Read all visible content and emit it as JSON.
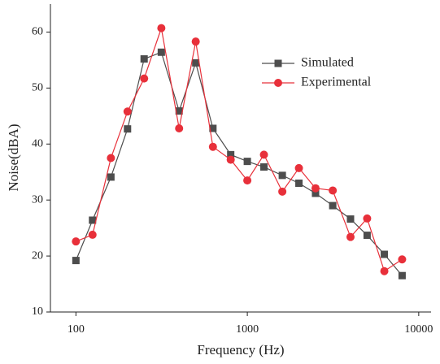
{
  "chart_data": {
    "type": "line",
    "x_label": "Frequency (Hz)",
    "y_label": "Noise(dBA)",
    "xscale": "log",
    "x": [
      100,
      125,
      160,
      200,
      250,
      315,
      400,
      500,
      630,
      800,
      1000,
      1250,
      1600,
      2000,
      2500,
      3150,
      4000,
      5000,
      6300,
      8000
    ],
    "series": [
      {
        "name": "Simulated",
        "color": "#4d4d4d",
        "marker": "square",
        "values": [
          19.2,
          26.4,
          34.1,
          42.7,
          55.2,
          56.4,
          45.9,
          54.5,
          42.8,
          38.1,
          36.9,
          35.9,
          34.4,
          33.0,
          31.2,
          29.0,
          26.6,
          23.7,
          20.3,
          16.5
        ]
      },
      {
        "name": "Experimental",
        "color": "#e8303a",
        "marker": "circle",
        "values": [
          22.6,
          23.8,
          37.5,
          45.8,
          51.7,
          60.7,
          42.8,
          58.3,
          39.5,
          37.2,
          33.5,
          38.1,
          31.5,
          35.7,
          32.1,
          31.7,
          23.4,
          26.7,
          17.3,
          19.4
        ]
      }
    ],
    "xlim": [
      71,
      11800
    ],
    "xticks": [
      100,
      1000,
      10000
    ],
    "ylim": [
      10,
      65
    ],
    "yticks": [
      10,
      20,
      30,
      40,
      50,
      60
    ],
    "legend": "upper right"
  }
}
